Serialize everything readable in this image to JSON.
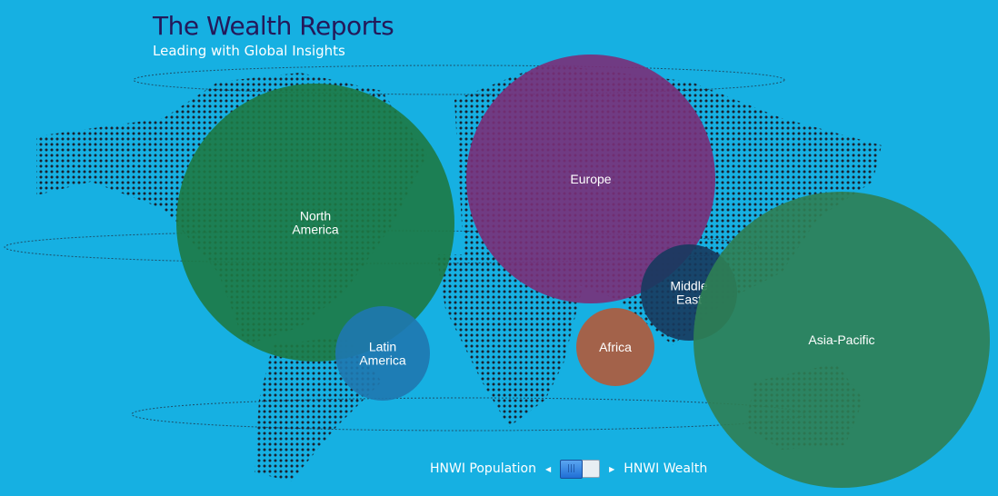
{
  "header": {
    "title": "The Wealth Reports",
    "subtitle": "Leading with Global Insights"
  },
  "regions": [
    {
      "label_lines": [
        "North",
        "America"
      ],
      "color": "#1d7a45"
    },
    {
      "label_lines": [
        "Latin",
        "America"
      ],
      "color": "#1f78b0"
    },
    {
      "label_lines": [
        "Europe"
      ],
      "color": "#7a2f79"
    },
    {
      "label_lines": [
        "Middle",
        "East"
      ],
      "color": "#173a5e"
    },
    {
      "label_lines": [
        "Africa"
      ],
      "color": "#b25a3a"
    },
    {
      "label_lines": [
        "Asia-Pacific"
      ],
      "color": "#2f7f54"
    }
  ],
  "toggle": {
    "left_label": "HNWI Population",
    "right_label": "HNWI Wealth",
    "selected": "HNWI Population"
  },
  "colors": {
    "background": "#16b0e2",
    "title": "#24195a"
  }
}
